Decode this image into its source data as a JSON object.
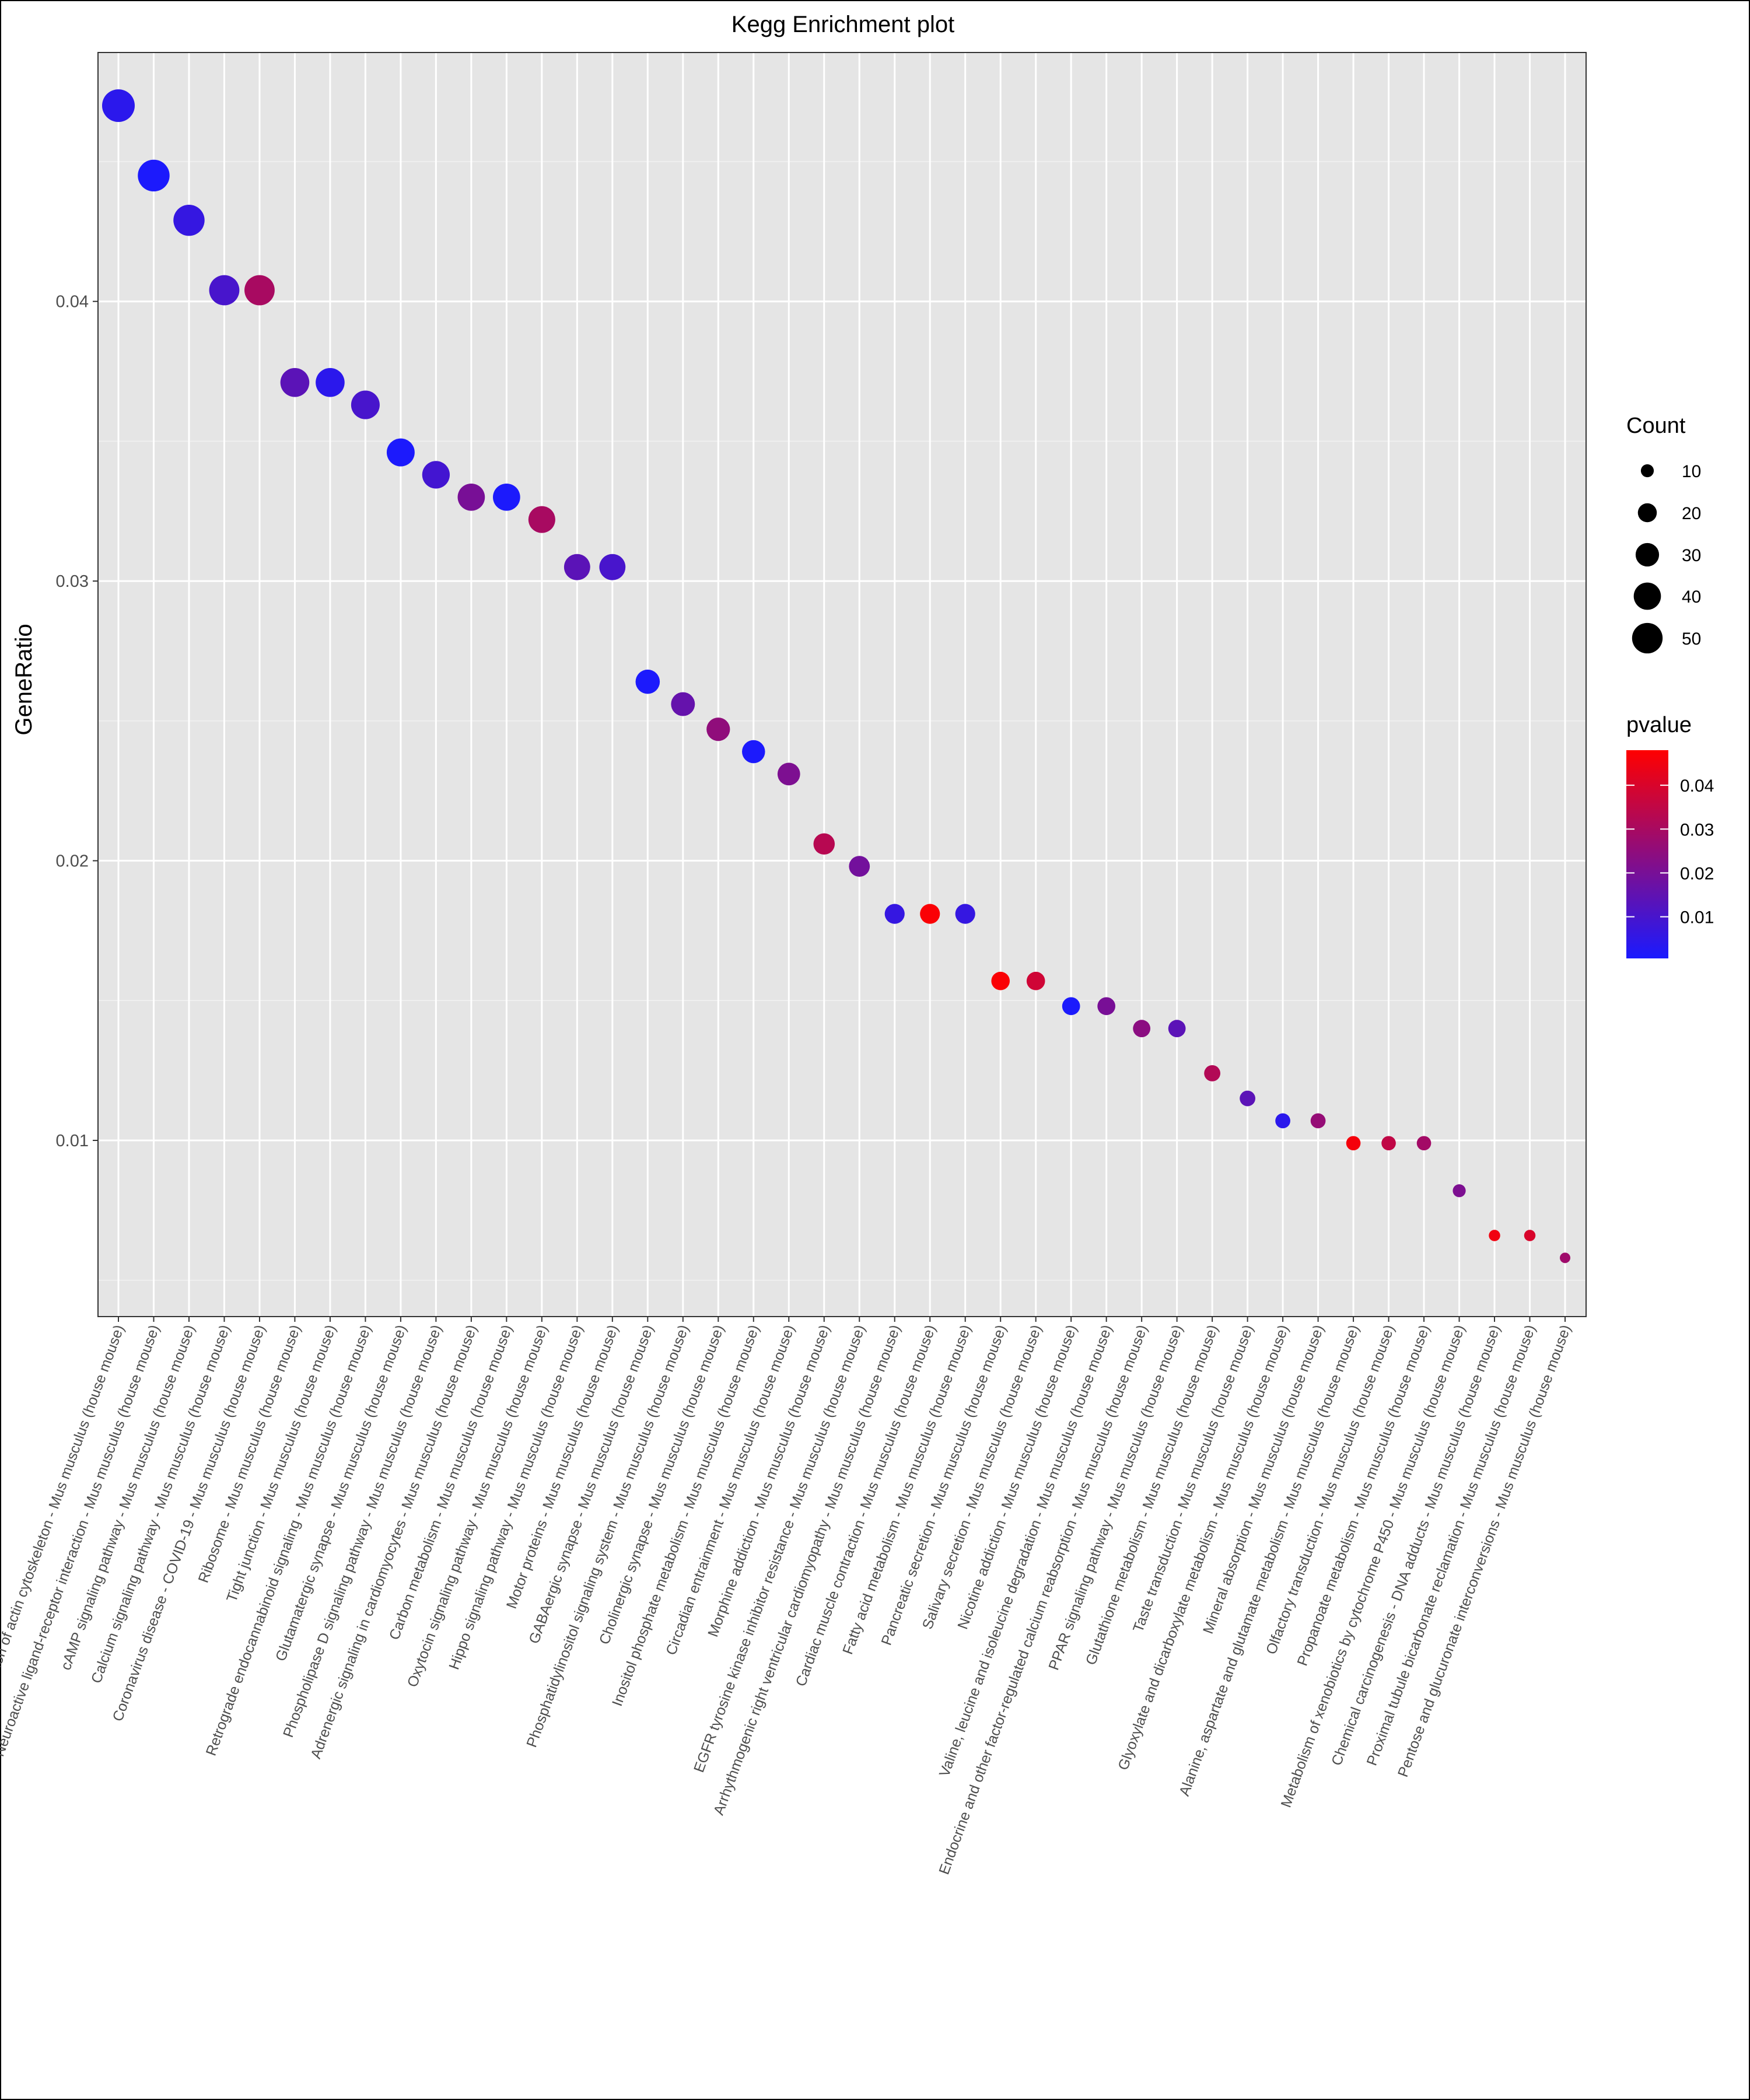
{
  "chart_data": {
    "type": "scatter",
    "title": "Kegg Enrichment plot",
    "xlabel": "",
    "ylabel": "GeneRatio",
    "ylim": [
      0.0037,
      0.0489
    ],
    "yticks": [
      0.01,
      0.02,
      0.03,
      0.04
    ],
    "ytick_labels": [
      "0.01",
      "0.02",
      "0.03",
      "0.04"
    ],
    "grid": true,
    "legend_position": "right",
    "size_legend": {
      "title": "Count",
      "values": [
        10,
        20,
        30,
        40,
        50
      ],
      "labels": [
        "10",
        "20",
        "30",
        "40",
        "50"
      ]
    },
    "color_legend": {
      "title": "pvalue",
      "range": [
        0.0005,
        0.048
      ],
      "ticks": [
        0.01,
        0.02,
        0.03,
        0.04
      ],
      "tick_labels": [
        "0.01",
        "0.02",
        "0.03",
        "0.04"
      ],
      "low_color": "#1a1aff",
      "high_color": "#ff0000"
    },
    "categories": [
      "Regulation of actin cytoskeleton - Mus musculus (house mouse)",
      "Neuroactive ligand-receptor interaction - Mus musculus (house mouse)",
      "cAMP signaling pathway - Mus musculus (house mouse)",
      "Calcium signaling pathway - Mus musculus (house mouse)",
      "Coronavirus disease - COVID-19 - Mus musculus (house mouse)",
      "Ribosome - Mus musculus (house mouse)",
      "Tight junction - Mus musculus (house mouse)",
      "Retrograde endocannabinoid signaling - Mus musculus (house mouse)",
      "Glutamatergic synapse - Mus musculus (house mouse)",
      "Phospholipase D signaling pathway - Mus musculus (house mouse)",
      "Adrenergic signaling in cardiomyocytes - Mus musculus (house mouse)",
      "Carbon metabolism - Mus musculus (house mouse)",
      "Oxytocin signaling pathway - Mus musculus (house mouse)",
      "Hippo signaling pathway - Mus musculus (house mouse)",
      "Motor proteins - Mus musculus (house mouse)",
      "GABAergic synapse - Mus musculus (house mouse)",
      "Phosphatidylinositol signaling system - Mus musculus (house mouse)",
      "Cholinergic synapse - Mus musculus (house mouse)",
      "Inositol phosphate metabolism - Mus musculus (house mouse)",
      "Circadian entrainment - Mus musculus (house mouse)",
      "Morphine addiction - Mus musculus (house mouse)",
      "EGFR tyrosine kinase inhibitor resistance - Mus musculus (house mouse)",
      "Arrhythmogenic right ventricular cardiomyopathy - Mus musculus (house mouse)",
      "Cardiac muscle contraction - Mus musculus (house mouse)",
      "Fatty acid metabolism - Mus musculus (house mouse)",
      "Pancreatic secretion - Mus musculus (house mouse)",
      "Salivary secretion - Mus musculus (house mouse)",
      "Nicotine addiction - Mus musculus (house mouse)",
      "Valine, leucine and isoleucine degradation - Mus musculus (house mouse)",
      "Endocrine and other factor-regulated calcium reabsorption - Mus musculus (house mouse)",
      "PPAR signaling pathway - Mus musculus (house mouse)",
      "Glutathione metabolism - Mus musculus (house mouse)",
      "Taste transduction - Mus musculus (house mouse)",
      "Glyoxylate and dicarboxylate metabolism - Mus musculus (house mouse)",
      "Mineral absorption - Mus musculus (house mouse)",
      "Alanine, aspartate and glutamate metabolism - Mus musculus (house mouse)",
      "Olfactory transduction - Mus musculus (house mouse)",
      "Propanoate metabolism - Mus musculus (house mouse)",
      "Metabolism of xenobiotics by cytochrome P450 - Mus musculus (house mouse)",
      "Chemical carcinogenesis - DNA adducts - Mus musculus (house mouse)",
      "Proximal tubule bicarbonate reclamation - Mus musculus (house mouse)",
      "Pentose and glucuronate interconversions - Mus musculus (house mouse)"
    ],
    "gene_ratio": [
      0.047,
      0.0445,
      0.0429,
      0.0404,
      0.0404,
      0.0371,
      0.0371,
      0.0363,
      0.0346,
      0.0338,
      0.033,
      0.033,
      0.0322,
      0.0305,
      0.0305,
      0.0264,
      0.0256,
      0.0247,
      0.0239,
      0.0231,
      0.0206,
      0.0198,
      0.0181,
      0.0181,
      0.0181,
      0.0157,
      0.0157,
      0.0148,
      0.0148,
      0.014,
      0.014,
      0.0124,
      0.0115,
      0.0107,
      0.0107,
      0.0099,
      0.0099,
      0.0099,
      0.0082,
      0.0066,
      0.0066,
      0.0058
    ],
    "count": [
      57,
      54,
      52,
      49,
      49,
      45,
      45,
      44,
      42,
      41,
      40,
      40,
      39,
      37,
      37,
      32,
      31,
      30,
      29,
      28,
      25,
      24,
      22,
      22,
      22,
      19,
      19,
      18,
      18,
      17,
      17,
      15,
      14,
      13,
      13,
      12,
      12,
      12,
      10,
      8,
      8,
      7
    ],
    "pvalue": [
      0.004,
      0.001,
      0.006,
      0.01,
      0.03,
      0.014,
      0.004,
      0.01,
      0.001,
      0.009,
      0.02,
      0.001,
      0.03,
      0.014,
      0.01,
      0.001,
      0.016,
      0.025,
      0.001,
      0.021,
      0.033,
      0.019,
      0.006,
      0.047,
      0.006,
      0.047,
      0.038,
      0.001,
      0.02,
      0.024,
      0.014,
      0.032,
      0.014,
      0.004,
      0.026,
      0.046,
      0.035,
      0.029,
      0.021,
      0.045,
      0.04,
      0.028
    ]
  }
}
